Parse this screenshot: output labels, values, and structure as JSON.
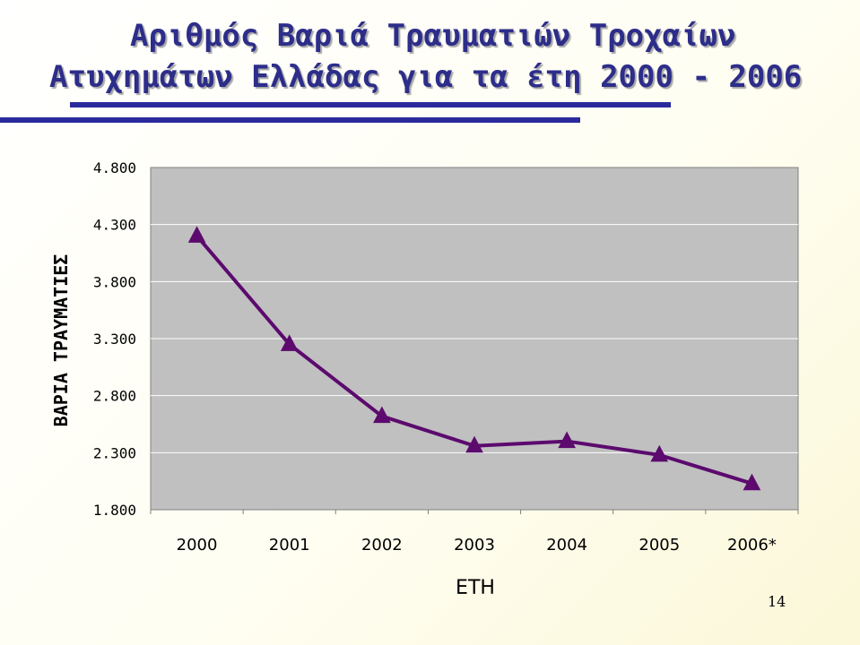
{
  "slide": {
    "title_line1": "Αριθμός Βαριά Τραυματιών Τροχαίων",
    "title_line2": "Ατυχημάτων Ελλάδας για τα έτη 2000 - 2006",
    "page_number": "14"
  },
  "chart_data": {
    "type": "line",
    "title": "",
    "xlabel": "ΕΤΗ",
    "ylabel": "ΒΑΡΙΑ ΤΡΑΥΜΑΤΙΕΣ",
    "categories": [
      "2000",
      "2001",
      "2002",
      "2003",
      "2004",
      "2005",
      "2006*"
    ],
    "series": [
      {
        "values": [
          4200,
          3250,
          2620,
          2360,
          2400,
          2280,
          2030
        ]
      }
    ],
    "ylim": [
      1800,
      4800
    ],
    "yticks": [
      1800,
      2300,
      2800,
      3300,
      3800,
      4300,
      4800
    ],
    "ytick_labels": [
      "1.800",
      "2.300",
      "2.800",
      "3.300",
      "3.800",
      "4.300",
      "4.800"
    ],
    "grid": true,
    "legend": "none",
    "colors": {
      "line": "#5c0a6e",
      "marker": "#5c0a6e",
      "plot_background": "#c0c0c0",
      "gridline": "#ffffff",
      "title": "#2d2d8a"
    }
  }
}
